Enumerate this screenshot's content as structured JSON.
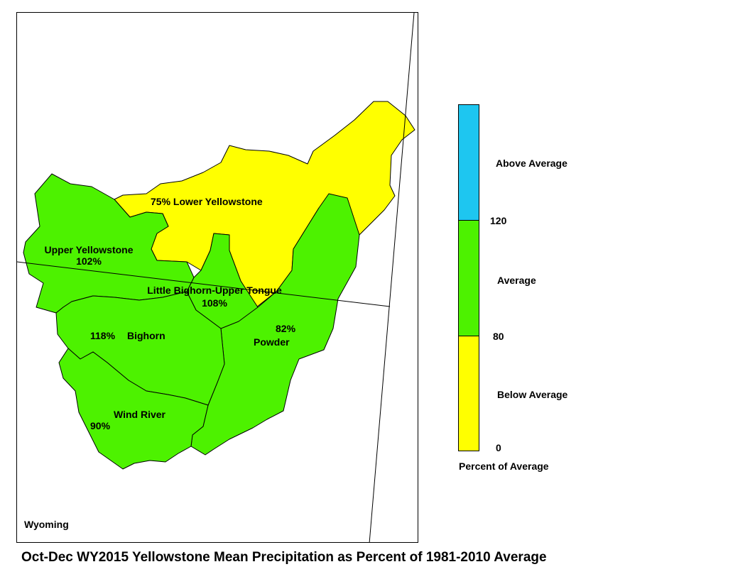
{
  "map": {
    "state_label": "Wyoming",
    "colors": {
      "above": "#1ec6f0",
      "average": "#4df200",
      "below": "#ffff00",
      "outline": "#000000"
    },
    "basins": {
      "lower_yellowstone": {
        "label": "75% Lower Yellowstone",
        "category": "below"
      },
      "upper_yellowstone": {
        "name": "Upper Yellowstone",
        "percent": "102%",
        "category": "average"
      },
      "little_bighorn": {
        "name": "Little Bighorn-Upper Tongue",
        "percent": "108%",
        "category": "average"
      },
      "bighorn": {
        "name": "Bighorn",
        "percent": "118%",
        "category": "average"
      },
      "powder": {
        "name": "Powder",
        "percent": "82%",
        "category": "average"
      },
      "wind_river": {
        "name": "Wind River",
        "percent": "90%",
        "category": "average"
      }
    }
  },
  "legend": {
    "categories": {
      "above": "Above Average",
      "average": "Average",
      "below": "Below Average"
    },
    "ticks": {
      "t120": "120",
      "t80": "80",
      "t0": "0"
    },
    "title": "Percent of Average"
  },
  "caption": "Oct-Dec WY2015 Yellowstone Mean Precipitation as Percent of 1981-2010 Average"
}
